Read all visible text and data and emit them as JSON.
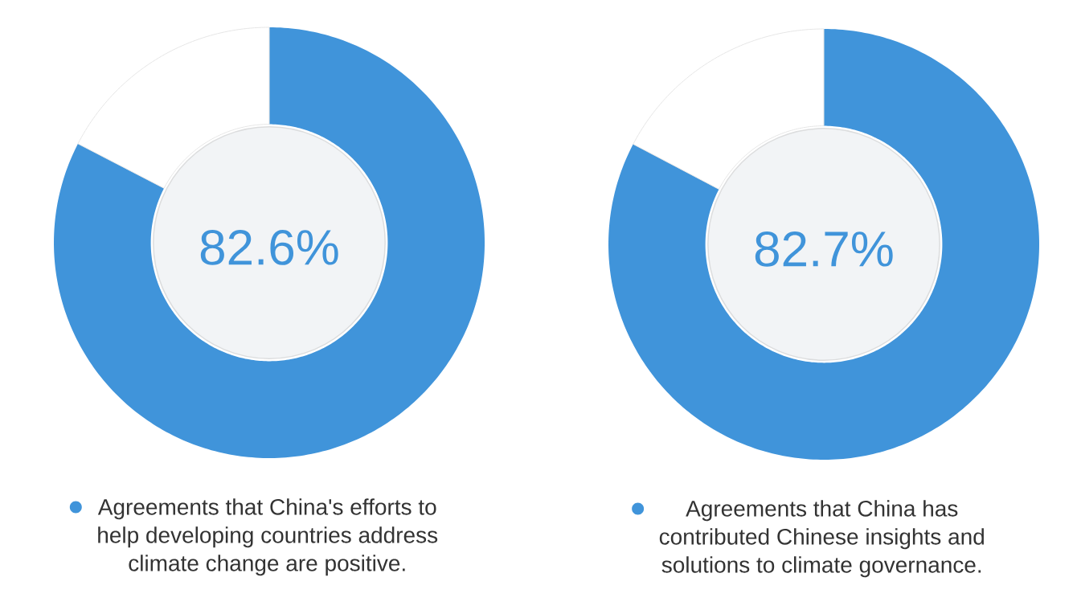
{
  "chart_data": [
    {
      "type": "donut",
      "categories": [
        "Agreements that China's efforts to help developing countries address climate change are positive.",
        null
      ],
      "values": [
        82.6,
        17.4
      ],
      "colors": [
        "#4094da",
        "#ffffff"
      ],
      "value_labels": [
        "82.6%",
        null
      ],
      "legend": "bottom"
    },
    {
      "type": "donut",
      "categories": [
        "Agreements that China has contributed Chinese insights and solutions to climate governance.",
        null
      ],
      "values": [
        82.7,
        17.3
      ],
      "colors": [
        "#4094da",
        "#ffffff"
      ],
      "value_labels": [
        "82.7%",
        null
      ],
      "legend": "bottom"
    }
  ]
}
